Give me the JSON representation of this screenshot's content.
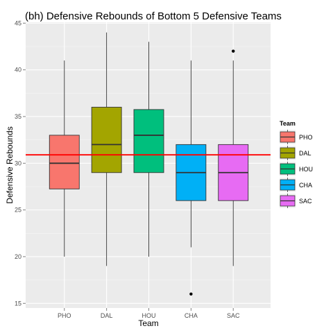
{
  "chart_data": {
    "type": "boxplot",
    "title": "(bh) Defensive Rebounds of Bottom 5 Defensive Teams",
    "xlabel": "Team",
    "ylabel": "Defensive Rebounds",
    "ylim": [
      14.5,
      45.1
    ],
    "yticks": [
      15,
      20,
      25,
      30,
      35,
      40,
      45
    ],
    "grid": true,
    "legend_placement": "right",
    "legend_title": "Team",
    "categories": [
      "PHO",
      "DAL",
      "HOU",
      "CHA",
      "SAC"
    ],
    "series": [
      {
        "name": "PHO",
        "color": "#F8766D",
        "min": 20,
        "q1": 27.25,
        "median": 30,
        "q3": 33,
        "max": 41,
        "outliers": []
      },
      {
        "name": "DAL",
        "color": "#A3A500",
        "min": 19,
        "q1": 29,
        "median": 32,
        "q3": 36,
        "max": 44,
        "outliers": []
      },
      {
        "name": "HOU",
        "color": "#00BF7D",
        "min": 20,
        "q1": 29,
        "median": 33,
        "q3": 35.75,
        "max": 43,
        "outliers": []
      },
      {
        "name": "CHA",
        "color": "#00B0F6",
        "min": 21,
        "q1": 26,
        "median": 29,
        "q3": 32,
        "max": 41,
        "outliers": [
          16
        ]
      },
      {
        "name": "SAC",
        "color": "#E76BF3",
        "min": 19,
        "q1": 26,
        "median": 29,
        "q3": 32,
        "max": 41,
        "outliers": [
          42
        ]
      }
    ],
    "reference_line": {
      "y": 30.9,
      "color": "#ff0000"
    }
  },
  "colors": {
    "panel_bg": "#ebebeb",
    "grid_major": "#ffffff",
    "grid_minor": "#f5f5f5",
    "reference_line": "#ff0000"
  }
}
